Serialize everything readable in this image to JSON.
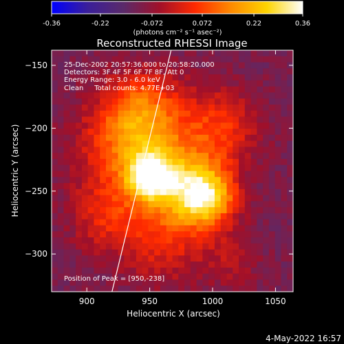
{
  "colorbar": {
    "tick_labels": [
      "-0.36",
      "-0.22",
      "-0.072",
      "0.072",
      "0.22",
      "0.36"
    ],
    "tick_values": [
      -0.36,
      -0.22,
      -0.072,
      0.072,
      0.22,
      0.36
    ],
    "range": [
      -0.36,
      0.36
    ],
    "units_label": "(photons cm⁻² s⁻¹ asec⁻²)",
    "stops": [
      "#0000ff",
      "#3a1f9a",
      "#5a2a6a",
      "#a0102a",
      "#ff2a00",
      "#ff8a00",
      "#ffd400",
      "#ffffff"
    ]
  },
  "chart_data": {
    "type": "heatmap",
    "title": "Reconstructed RHESSI Image",
    "xlabel": "Heliocentric X (arcsec)",
    "ylabel": "Heliocentric Y (arcsec)",
    "xlim": [
      872,
      1064
    ],
    "ylim": [
      -330,
      -138
    ],
    "x_ticks": [
      900,
      950,
      1000,
      1050
    ],
    "y_ticks": [
      -150,
      -200,
      -250,
      -300
    ],
    "x_tick_labels": [
      "900",
      "950",
      "1000",
      "1050"
    ],
    "y_tick_labels": [
      "−150",
      "−200",
      "−250",
      "−300"
    ],
    "annotations": [
      "25-Dec-2002 20:57:36.000 to 20:58:20.000",
      "Detectors: 3F 4F 5F 6F 7F 8F, Att 0",
      "Energy Range: 3.0 - 6.0 keV",
      "Clean     Total counts: 4.77E+03"
    ],
    "peak_label": "Position of Peak = [950,-238]",
    "peak": [
      950,
      -238
    ],
    "sources": [
      {
        "x": 950,
        "y": -238,
        "sigma": 12,
        "amp": 0.36
      },
      {
        "x": 995,
        "y": -255,
        "sigma": 16,
        "amp": 0.33
      },
      {
        "x": 975,
        "y": -245,
        "sigma": 22,
        "amp": 0.22
      },
      {
        "x": 935,
        "y": -215,
        "sigma": 28,
        "amp": 0.22
      },
      {
        "x": 1005,
        "y": -200,
        "sigma": 22,
        "amp": 0.16
      },
      {
        "x": 945,
        "y": -185,
        "sigma": 22,
        "amp": 0.17
      },
      {
        "x": 915,
        "y": -270,
        "sigma": 20,
        "amp": 0.12
      },
      {
        "x": 960,
        "y": -290,
        "sigma": 24,
        "amp": 0.13
      },
      {
        "x": 1015,
        "y": -305,
        "sigma": 16,
        "amp": 0.07
      }
    ],
    "background": -0.11,
    "limb_line": {
      "x1": 920,
      "y1": -330,
      "x2": 967,
      "y2": -138
    }
  },
  "footer": {
    "date": "4-May-2022 16:57"
  }
}
